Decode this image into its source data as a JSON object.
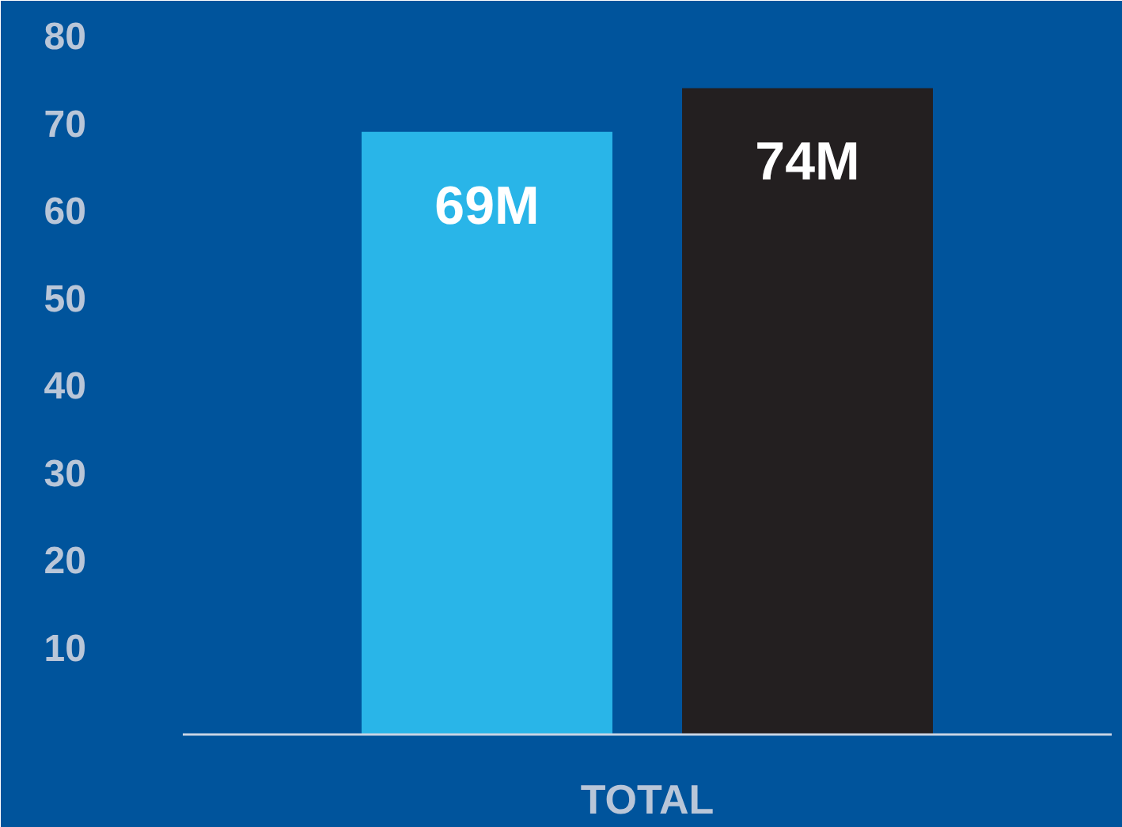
{
  "chart_data": {
    "type": "bar",
    "categories": [
      "TOTAL"
    ],
    "series": [
      {
        "color": "#29b5e8",
        "values": [
          69
        ],
        "value_labels": [
          "69M"
        ]
      },
      {
        "color": "#231f20",
        "values": [
          74
        ],
        "value_labels": [
          "74M"
        ]
      }
    ],
    "ylim": [
      0,
      84
    ],
    "yticks": [
      10,
      20,
      30,
      40,
      50,
      60,
      70,
      80
    ],
    "grid": false
  }
}
